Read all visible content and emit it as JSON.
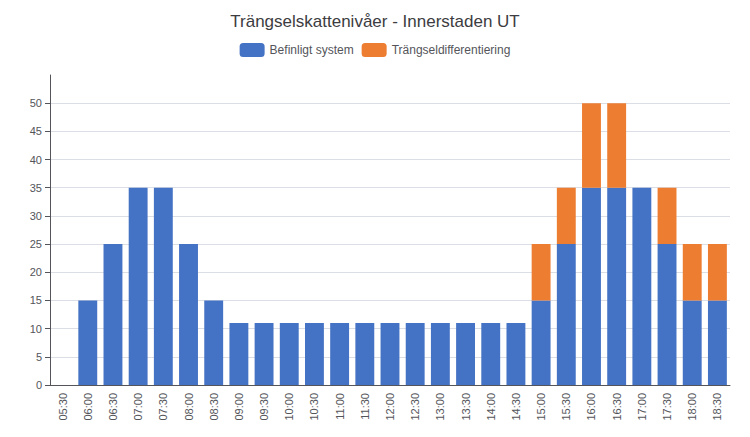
{
  "chart_data": {
    "type": "bar",
    "title": "Trängselskattenivåer - Innerstaden UT",
    "categories": [
      "05:30",
      "06:00",
      "06:30",
      "07:00",
      "07:30",
      "08:00",
      "08:30",
      "09:00",
      "09:30",
      "10:00",
      "10:30",
      "11:00",
      "11:30",
      "12:00",
      "12:30",
      "13:00",
      "13:30",
      "14:00",
      "14:30",
      "15:00",
      "15:30",
      "16:00",
      "16:30",
      "17:00",
      "17:30",
      "18:00",
      "18:30"
    ],
    "series": [
      {
        "name": "Befinligt system",
        "color": "#4472C4",
        "values": [
          0,
          15,
          25,
          35,
          35,
          25,
          15,
          11,
          11,
          11,
          11,
          11,
          11,
          11,
          11,
          11,
          11,
          11,
          11,
          15,
          25,
          35,
          35,
          35,
          25,
          15,
          15
        ]
      },
      {
        "name": "Trängseldifferentiering",
        "color": "#ED7D31",
        "values": [
          0,
          0,
          0,
          0,
          0,
          0,
          0,
          0,
          0,
          0,
          0,
          0,
          0,
          0,
          0,
          0,
          0,
          0,
          0,
          10,
          10,
          15,
          15,
          0,
          10,
          10,
          10
        ]
      }
    ],
    "stacked": true,
    "ylim": [
      0,
      55
    ],
    "yticks": [
      0,
      5,
      10,
      15,
      20,
      25,
      30,
      35,
      40,
      45,
      50
    ],
    "grid": true,
    "legend": "top"
  }
}
